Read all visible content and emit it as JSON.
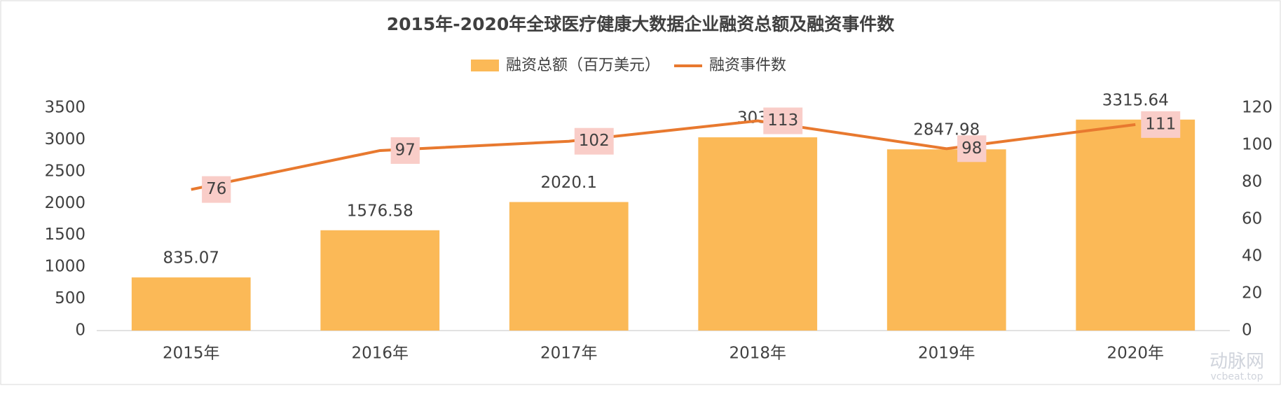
{
  "chart_data": {
    "type": "bar",
    "title": "2015年-2020年全球医疗健康大数据企业融资总额及融资事件数",
    "categories": [
      "2015年",
      "2016年",
      "2017年",
      "2018年",
      "2019年",
      "2020年"
    ],
    "series": [
      {
        "name": "融资总额（百万美元）",
        "type": "bar",
        "color": "#fbb957",
        "values": [
          835.07,
          1576.58,
          2020.1,
          3037,
          2847.98,
          3315.64
        ]
      },
      {
        "name": "融资事件数",
        "type": "line",
        "axis": "y2",
        "color": "#e8792f",
        "values": [
          76,
          97,
          102,
          113,
          98,
          111
        ]
      }
    ],
    "ylim": [
      0,
      3500
    ],
    "yticks": [
      0,
      500,
      1000,
      1500,
      2000,
      2500,
      3000,
      3500
    ],
    "y2lim": [
      0,
      120
    ],
    "y2ticks": [
      0,
      20,
      40,
      60,
      80,
      100,
      120
    ],
    "legend": "top",
    "watermark": "动脉网",
    "watermark_sub": "vcbeat.top"
  }
}
